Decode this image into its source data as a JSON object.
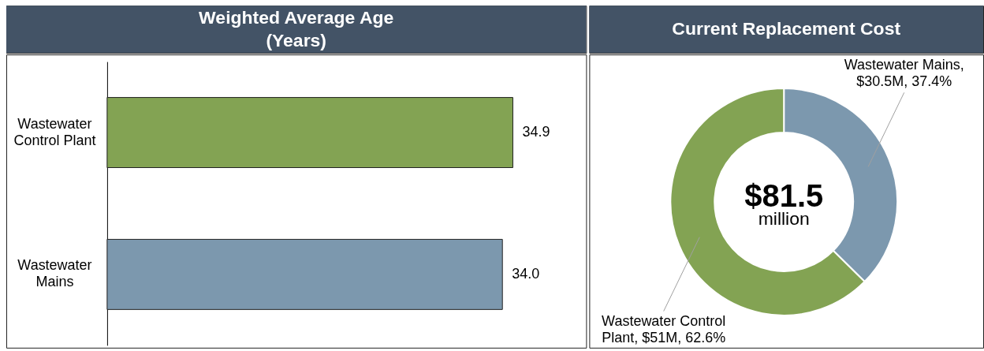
{
  "chart_data": [
    {
      "type": "bar",
      "orientation": "horizontal",
      "title": "Weighted Average Age\n(Years)",
      "categories": [
        "Wastewater Control Plant",
        "Wastewater Mains"
      ],
      "values": [
        34.9,
        34.0
      ],
      "colors": [
        "#83a353",
        "#7c98ae"
      ],
      "value_labels": [
        "34.9",
        "34.0"
      ],
      "tick_labels": "y"
    },
    {
      "type": "donut",
      "title": "Current Replacement Cost",
      "categories": [
        "Wastewater Mains",
        "Wastewater Control Plant"
      ],
      "values": [
        37.4,
        62.6
      ],
      "colors": [
        "#7c98ae",
        "#83a353"
      ],
      "value_labels": [
        ", $30.5M, 37.4%",
        ", $51M, 62.6%"
      ],
      "annotations": [
        "$81.5",
        "million"
      ]
    }
  ]
}
